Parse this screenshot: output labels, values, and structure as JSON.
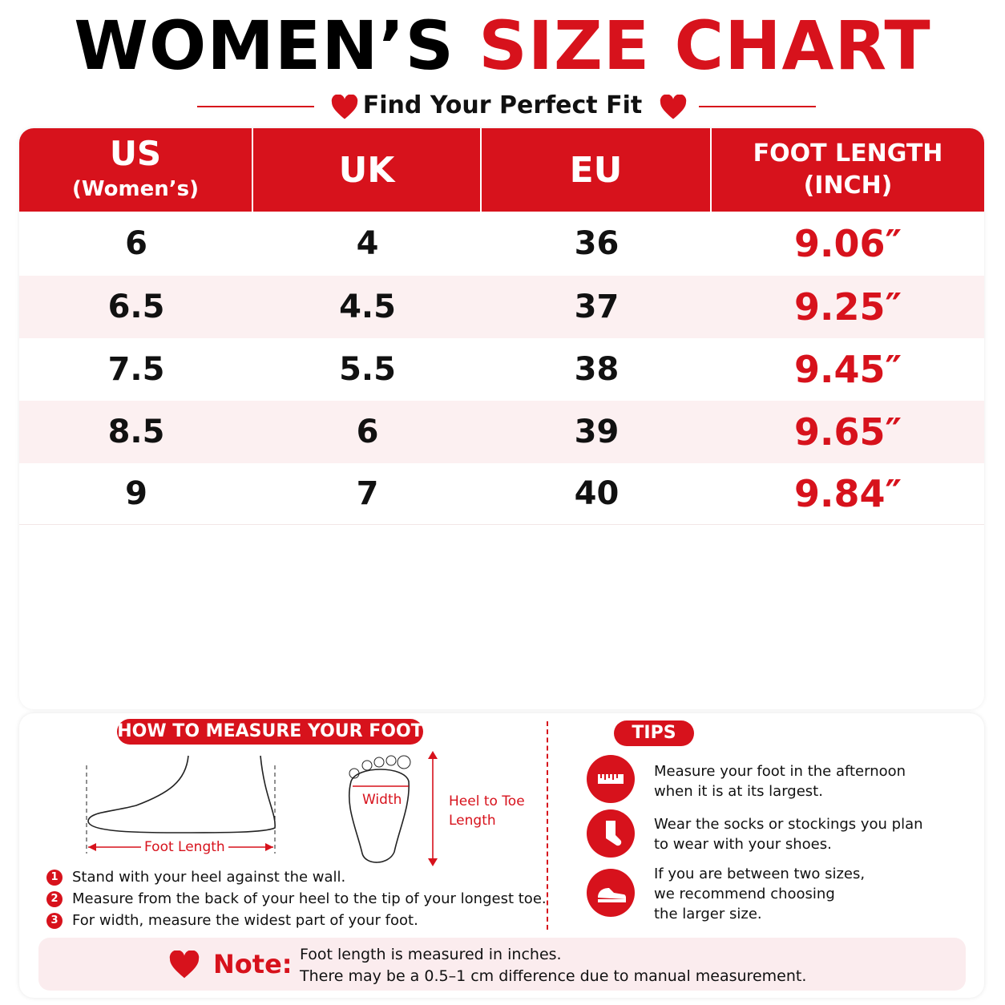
{
  "header": {
    "title_black": "WOMEN’S",
    "title_red": "SIZE CHART",
    "subtitle": "Find Your Perfect Fit"
  },
  "table": {
    "headers": [
      [
        "US",
        "(Women’s)"
      ],
      [
        "UK"
      ],
      [
        "EU"
      ],
      [
        "FOOT LENGTH",
        "(INCH)"
      ]
    ],
    "rows": [
      [
        "6",
        "4",
        "36",
        "9.06″"
      ],
      [
        "6.5",
        "4.5",
        "37",
        "9.25″"
      ],
      [
        "7.5",
        "5.5",
        "38",
        "9.45″"
      ],
      [
        "8.5",
        "6",
        "39",
        "9.65″"
      ],
      [
        "9",
        "7",
        "40",
        "9.84″"
      ]
    ]
  },
  "measure": {
    "title": "HOW TO MEASURE YOUR FOOT",
    "foot_length_label": "Foot Length",
    "width_label": "Width",
    "heel_to_toe_label": [
      "Heel to Toe",
      "Length"
    ],
    "steps": [
      {
        "num": "1",
        "text": "Stand with your heel against the wall."
      },
      {
        "num": "2",
        "text": "Measure from the back of your heel to the tip of your longest toe."
      },
      {
        "num": "3",
        "text": "For width, measure the widest part of your foot."
      }
    ]
  },
  "tips": {
    "title": "TIPS",
    "items": [
      [
        "Measure your foot in the afternoon",
        "when it is at its largest."
      ],
      [
        "Wear the socks or stockings you plan",
        "to wear with your shoes."
      ],
      [
        "If you are between two sizes,",
        "we recommend choosing",
        "the larger size."
      ]
    ]
  },
  "note": {
    "label": "Note:",
    "lines": [
      "Foot length is measured in inches.",
      "There may be a 0.5–1 cm difference due to manual measurement."
    ]
  }
}
